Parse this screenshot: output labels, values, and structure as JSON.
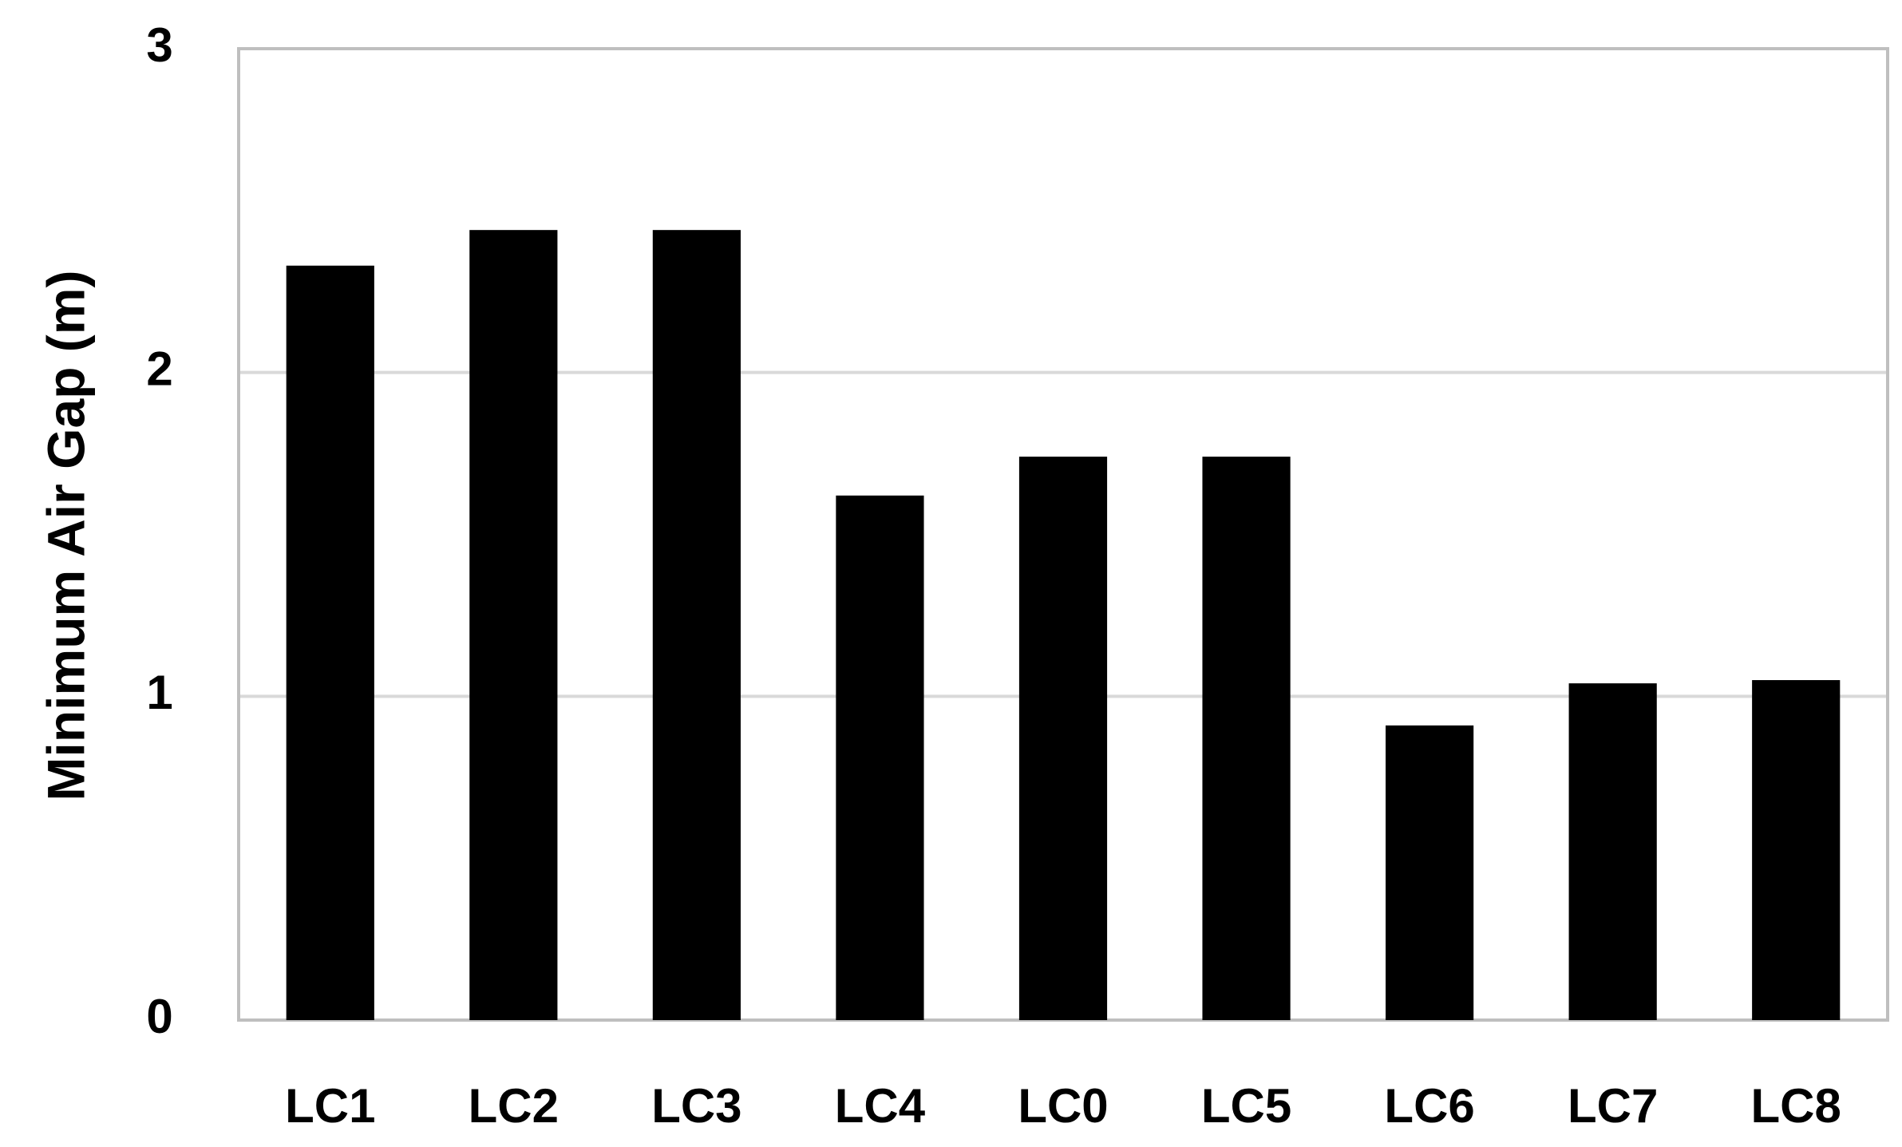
{
  "chart_data": {
    "type": "bar",
    "y_axis_label": "Minimum Air Gap (m)",
    "categories": [
      "LC1",
      "LC2",
      "LC3",
      "LC4",
      "LC0",
      "LC5",
      "LC6",
      "LC7",
      "LC8"
    ],
    "values": [
      2.33,
      2.44,
      2.44,
      1.62,
      1.74,
      1.74,
      0.91,
      1.04,
      1.05
    ],
    "color": "#000000",
    "ylim": [
      0,
      3
    ],
    "yticks": [
      0,
      1,
      2,
      3
    ],
    "grid": true
  }
}
